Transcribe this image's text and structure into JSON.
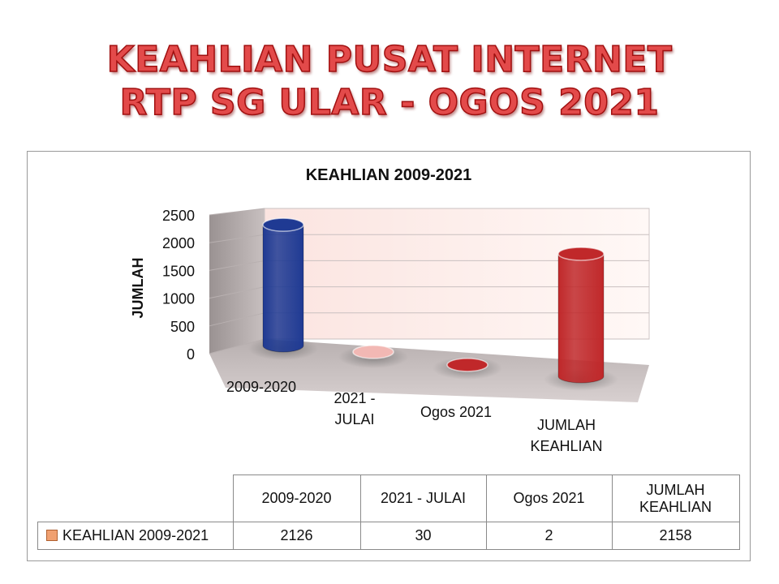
{
  "page": {
    "title_line1": "KEAHLIAN PUSAT INTERNET",
    "title_line2": "RTP SG ULAR - OGOS 2021"
  },
  "chart_data": {
    "type": "bar",
    "title": "KEAHLIAN 2009-2021",
    "xlabel": "",
    "ylabel": "JUMLAH",
    "ylim": [
      0,
      2500
    ],
    "yticks": [
      0,
      500,
      1000,
      1500,
      2000,
      2500
    ],
    "categories": [
      "2009-2020",
      "2021 - JULAI",
      "Ogos 2021",
      "JUMLAH KEAHLIAN"
    ],
    "category_label_lines": [
      [
        "2009-2020"
      ],
      [
        "2021 -",
        "JULAI"
      ],
      [
        "Ogos 2021"
      ],
      [
        "JUMLAH",
        "KEAHLIAN"
      ]
    ],
    "series": [
      {
        "name": "KEAHLIAN 2009-2021",
        "values": [
          2126,
          30,
          2,
          2158
        ]
      }
    ],
    "bar_colors": [
      "#1f3a93",
      "#f2b8b4",
      "#c0282a",
      "#c0282a"
    ],
    "grid": true,
    "legend": "table"
  },
  "table": {
    "headers": [
      "2009-2020",
      "2021 -  JULAI",
      "Ogos 2021",
      "JUMLAH KEAHLIAN"
    ],
    "header_lines": [
      [
        "2009-2020"
      ],
      [
        "2021 -  JULAI"
      ],
      [
        "Ogos 2021"
      ],
      [
        "JUMLAH",
        "KEAHLIAN"
      ]
    ],
    "row_label": "KEAHLIAN 2009-2021",
    "values": [
      "2126",
      "30",
      "2",
      "2158"
    ],
    "legend_icon": "square-swatch"
  }
}
